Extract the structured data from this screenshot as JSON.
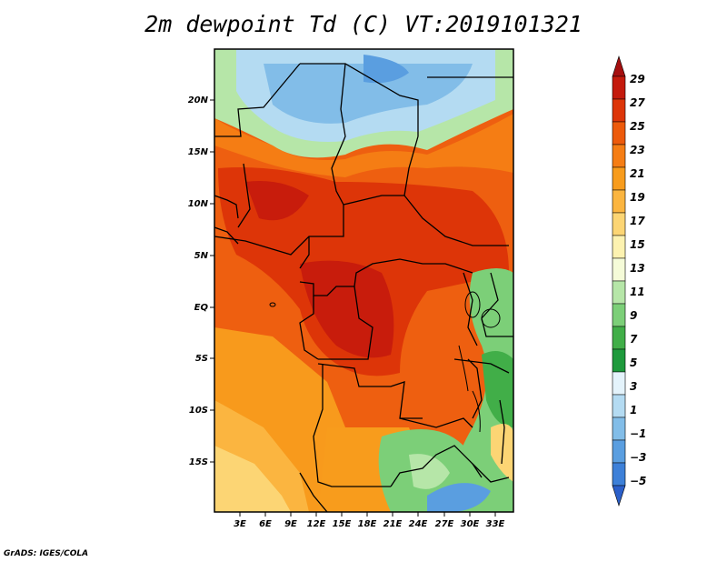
{
  "title": "2m dewpoint Td (C) VT:2019101321",
  "credit": "GrADS: IGES/COLA",
  "lat_labels": [
    "20N",
    "15N",
    "10N",
    "5N",
    "EQ",
    "5S",
    "10S",
    "15S"
  ],
  "lon_labels": [
    "3E",
    "6E",
    "9E",
    "12E",
    "15E",
    "18E",
    "21E",
    "24E",
    "27E",
    "30E",
    "33E"
  ],
  "colorbar": {
    "labels": [
      "29",
      "27",
      "25",
      "23",
      "21",
      "19",
      "17",
      "15",
      "13",
      "11",
      "9",
      "7",
      "5",
      "3",
      "1",
      "−1",
      "−3",
      "−5"
    ],
    "colors": [
      "#a50f0f",
      "#c41a0c",
      "#dd3508",
      "#ed5a0b",
      "#f57d14",
      "#f89c1c",
      "#fbb540",
      "#fcd574",
      "#fdf2b0",
      "#f5fbd8",
      "#b6e6a8",
      "#7ccf78",
      "#41ae48",
      "#1e9a3c",
      "#e4f3fb",
      "#b4dbf2",
      "#82bde8",
      "#5a9ee0",
      "#3d80d8",
      "#2b5fc9"
    ]
  }
}
